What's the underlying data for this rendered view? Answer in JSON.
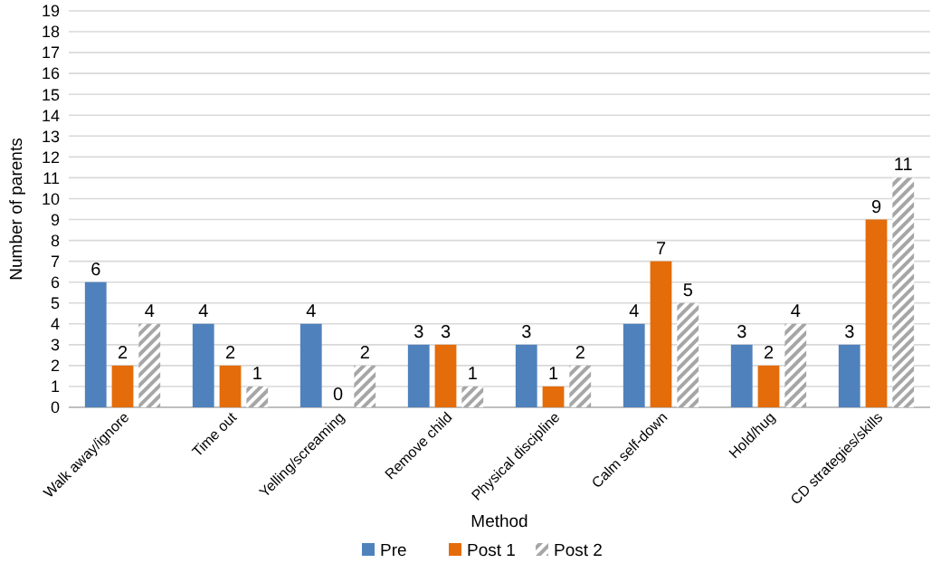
{
  "chart_data": {
    "type": "bar",
    "xlabel": "Method",
    "ylabel": "Number of parents",
    "categories": [
      "Walk away/ignore",
      "Time out",
      "Yelling/screaming",
      "Remove child",
      "Physical discipline",
      "Calm self-down",
      "Hold/hug",
      "CD strategies/skills"
    ],
    "series": [
      {
        "name": "Pre",
        "color": "#4f81bd",
        "values": [
          6,
          4,
          4,
          3,
          3,
          4,
          3,
          3
        ]
      },
      {
        "name": "Post 1",
        "color": "#e46c0a",
        "values": [
          2,
          2,
          0,
          3,
          1,
          7,
          2,
          9
        ]
      },
      {
        "name": "Post 2",
        "color": "#a6a6a6",
        "values": [
          4,
          1,
          2,
          1,
          2,
          5,
          4,
          11
        ]
      }
    ],
    "ylim": [
      0,
      19
    ],
    "yticks": [
      0,
      1,
      2,
      3,
      4,
      5,
      6,
      7,
      8,
      9,
      10,
      11,
      12,
      13,
      14,
      15,
      16,
      17,
      18,
      19
    ],
    "grid": "y",
    "legend": "bottom",
    "data_labels": true
  }
}
